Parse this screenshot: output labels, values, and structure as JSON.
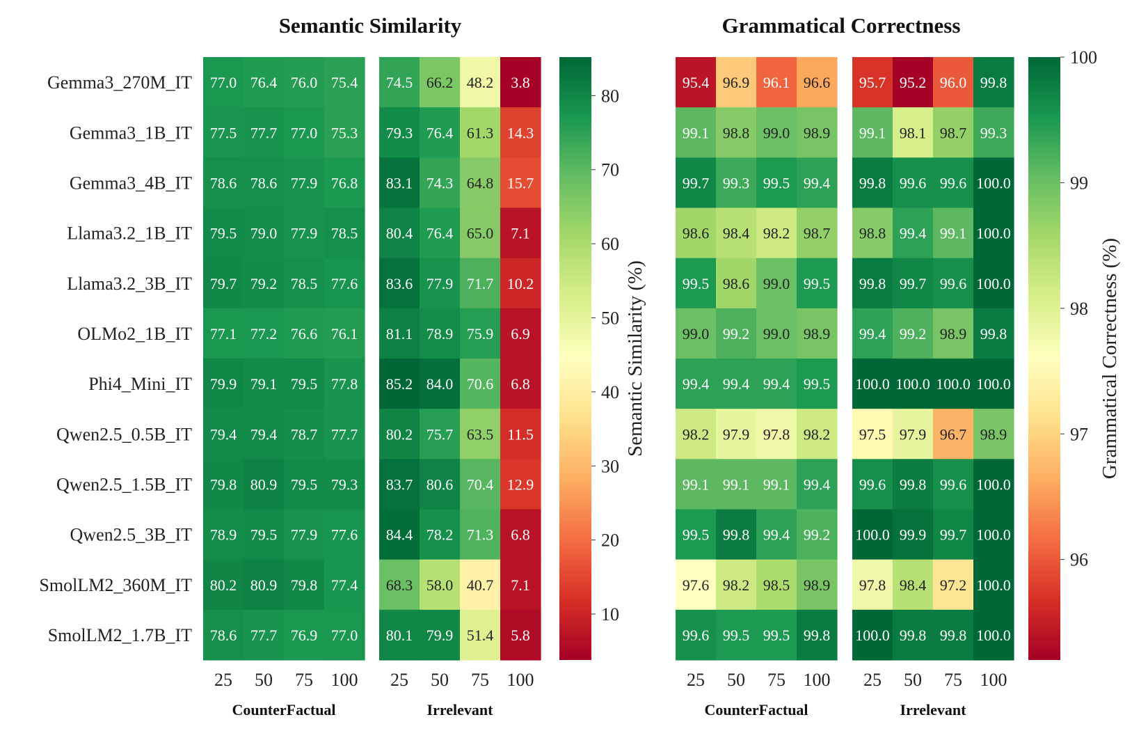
{
  "chart_data": [
    {
      "type": "heatmap",
      "title": "Semantic Similarity",
      "rows": [
        "Gemma3_270M_IT",
        "Gemma3_1B_IT",
        "Gemma3_4B_IT",
        "Llama3.2_1B_IT",
        "Llama3.2_3B_IT",
        "OLMo2_1B_IT",
        "Phi4_Mini_IT",
        "Qwen2.5_0.5B_IT",
        "Qwen2.5_1.5B_IT",
        "Qwen2.5_3B_IT",
        "SmolLM2_360M_IT",
        "SmolLM2_1.7B_IT"
      ],
      "column_labels": [
        "25",
        "50",
        "75",
        "100"
      ],
      "groups": [
        {
          "name": "CounterFactual",
          "values": [
            [
              "77.0",
              "76.4",
              "76.0",
              "75.4"
            ],
            [
              "77.5",
              "77.7",
              "77.0",
              "75.3"
            ],
            [
              "78.6",
              "78.6",
              "77.9",
              "76.8"
            ],
            [
              "79.5",
              "79.0",
              "77.9",
              "78.5"
            ],
            [
              "79.7",
              "79.2",
              "78.5",
              "77.6"
            ],
            [
              "77.1",
              "77.2",
              "76.6",
              "76.1"
            ],
            [
              "79.9",
              "79.1",
              "79.5",
              "77.8"
            ],
            [
              "79.4",
              "79.4",
              "78.7",
              "77.7"
            ],
            [
              "79.8",
              "80.9",
              "79.5",
              "79.3"
            ],
            [
              "78.9",
              "79.5",
              "77.9",
              "77.6"
            ],
            [
              "80.2",
              "80.9",
              "79.8",
              "77.4"
            ],
            [
              "78.6",
              "77.7",
              "76.9",
              "77.0"
            ]
          ]
        },
        {
          "name": "Irrelevant",
          "values": [
            [
              "74.5",
              "66.2",
              "48.2",
              "3.8"
            ],
            [
              "79.3",
              "76.4",
              "61.3",
              "14.3"
            ],
            [
              "83.1",
              "74.3",
              "64.8",
              "15.7"
            ],
            [
              "80.4",
              "76.4",
              "65.0",
              "7.1"
            ],
            [
              "83.6",
              "77.9",
              "71.7",
              "10.2"
            ],
            [
              "81.1",
              "78.9",
              "75.9",
              "6.9"
            ],
            [
              "85.2",
              "84.0",
              "70.6",
              "6.8"
            ],
            [
              "80.2",
              "75.7",
              "63.5",
              "11.5"
            ],
            [
              "83.7",
              "80.6",
              "70.4",
              "12.9"
            ],
            [
              "84.4",
              "78.2",
              "71.3",
              "6.8"
            ],
            [
              "68.3",
              "58.0",
              "40.7",
              "7.1"
            ],
            [
              "80.1",
              "79.9",
              "51.4",
              "5.8"
            ]
          ]
        }
      ],
      "colorbar": {
        "label": "Semantic Similarity (%)",
        "range": [
          3.8,
          85.2
        ],
        "ticks": [
          "10",
          "20",
          "30",
          "40",
          "50",
          "60",
          "70",
          "80"
        ],
        "colormap": "RdYlGn"
      }
    },
    {
      "type": "heatmap",
      "title": "Grammatical Correctness",
      "rows": [
        "Gemma3_270M_IT",
        "Gemma3_1B_IT",
        "Gemma3_4B_IT",
        "Llama3.2_1B_IT",
        "Llama3.2_3B_IT",
        "OLMo2_1B_IT",
        "Phi4_Mini_IT",
        "Qwen2.5_0.5B_IT",
        "Qwen2.5_1.5B_IT",
        "Qwen2.5_3B_IT",
        "SmolLM2_360M_IT",
        "SmolLM2_1.7B_IT"
      ],
      "column_labels": [
        "25",
        "50",
        "75",
        "100"
      ],
      "groups": [
        {
          "name": "CounterFactual",
          "values": [
            [
              "95.4",
              "96.9",
              "96.1",
              "96.6"
            ],
            [
              "99.1",
              "98.8",
              "99.0",
              "98.9"
            ],
            [
              "99.7",
              "99.3",
              "99.5",
              "99.4"
            ],
            [
              "98.6",
              "98.4",
              "98.2",
              "98.7"
            ],
            [
              "99.5",
              "98.6",
              "99.0",
              "99.5"
            ],
            [
              "99.0",
              "99.2",
              "99.0",
              "98.9"
            ],
            [
              "99.4",
              "99.4",
              "99.4",
              "99.5"
            ],
            [
              "98.2",
              "97.9",
              "97.8",
              "98.2"
            ],
            [
              "99.1",
              "99.1",
              "99.1",
              "99.4"
            ],
            [
              "99.5",
              "99.8",
              "99.4",
              "99.2"
            ],
            [
              "97.6",
              "98.2",
              "98.5",
              "98.9"
            ],
            [
              "99.6",
              "99.5",
              "99.5",
              "99.8"
            ]
          ]
        },
        {
          "name": "Irrelevant",
          "values": [
            [
              "95.7",
              "95.2",
              "96.0",
              "99.8"
            ],
            [
              "99.1",
              "98.1",
              "98.7",
              "99.3"
            ],
            [
              "99.8",
              "99.6",
              "99.6",
              "100.0"
            ],
            [
              "98.8",
              "99.4",
              "99.1",
              "100.0"
            ],
            [
              "99.8",
              "99.7",
              "99.6",
              "100.0"
            ],
            [
              "99.4",
              "99.2",
              "98.9",
              "99.8"
            ],
            [
              "100.0",
              "100.0",
              "100.0",
              "100.0"
            ],
            [
              "97.5",
              "97.9",
              "96.7",
              "98.9"
            ],
            [
              "99.6",
              "99.8",
              "99.6",
              "100.0"
            ],
            [
              "100.0",
              "99.9",
              "99.7",
              "100.0"
            ],
            [
              "97.8",
              "98.4",
              "97.2",
              "100.0"
            ],
            [
              "100.0",
              "99.8",
              "99.8",
              "100.0"
            ]
          ]
        }
      ],
      "colorbar": {
        "label": "Grammatical Correctness (%)",
        "range": [
          95.2,
          100.0
        ],
        "ticks": [
          "96",
          "97",
          "98",
          "99",
          "100"
        ],
        "colormap": "RdYlGn"
      }
    }
  ]
}
